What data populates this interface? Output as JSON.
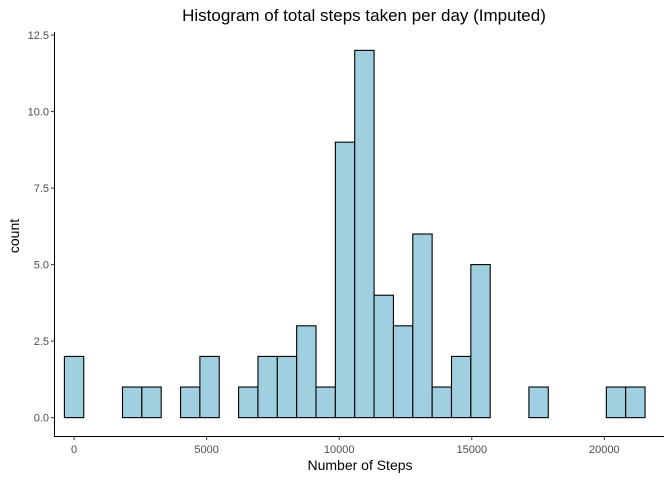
{
  "chart_data": {
    "type": "bar",
    "title": "Histogram of total steps taken per day (Imputed)",
    "xlabel": "Number of Steps",
    "ylabel": "count",
    "x_ticks": [
      0,
      5000,
      10000,
      15000,
      20000
    ],
    "x_tick_labels": [
      "0",
      "5000",
      "10000",
      "15000",
      "20000"
    ],
    "y_ticks": [
      0,
      2.5,
      5,
      7.5,
      10,
      12.5
    ],
    "y_tick_labels": [
      "0.0",
      "2.5",
      "5.0",
      "7.5",
      "10.0",
      "12.5"
    ],
    "xlim": [
      -720,
      22250
    ],
    "ylim": [
      -0.6,
      12.6
    ],
    "bin_width": 730,
    "bin_centers": [
      0,
      730,
      1460,
      2190,
      2920,
      3650,
      4380,
      5110,
      5840,
      6570,
      7300,
      8030,
      8760,
      9490,
      10220,
      10950,
      11680,
      12410,
      13140,
      13870,
      14600,
      15330,
      16060,
      16790,
      17520,
      18250,
      18980,
      19710,
      20440,
      21170
    ],
    "counts": [
      2,
      0,
      0,
      1,
      1,
      0,
      1,
      2,
      0,
      1,
      2,
      2,
      3,
      1,
      9,
      12,
      4,
      3,
      6,
      1,
      2,
      5,
      0,
      0,
      1,
      0,
      0,
      0,
      1,
      1
    ],
    "bar_fill": "#a0cfe0",
    "bar_stroke": "#000000",
    "background": "#ffffff",
    "grid": false
  }
}
